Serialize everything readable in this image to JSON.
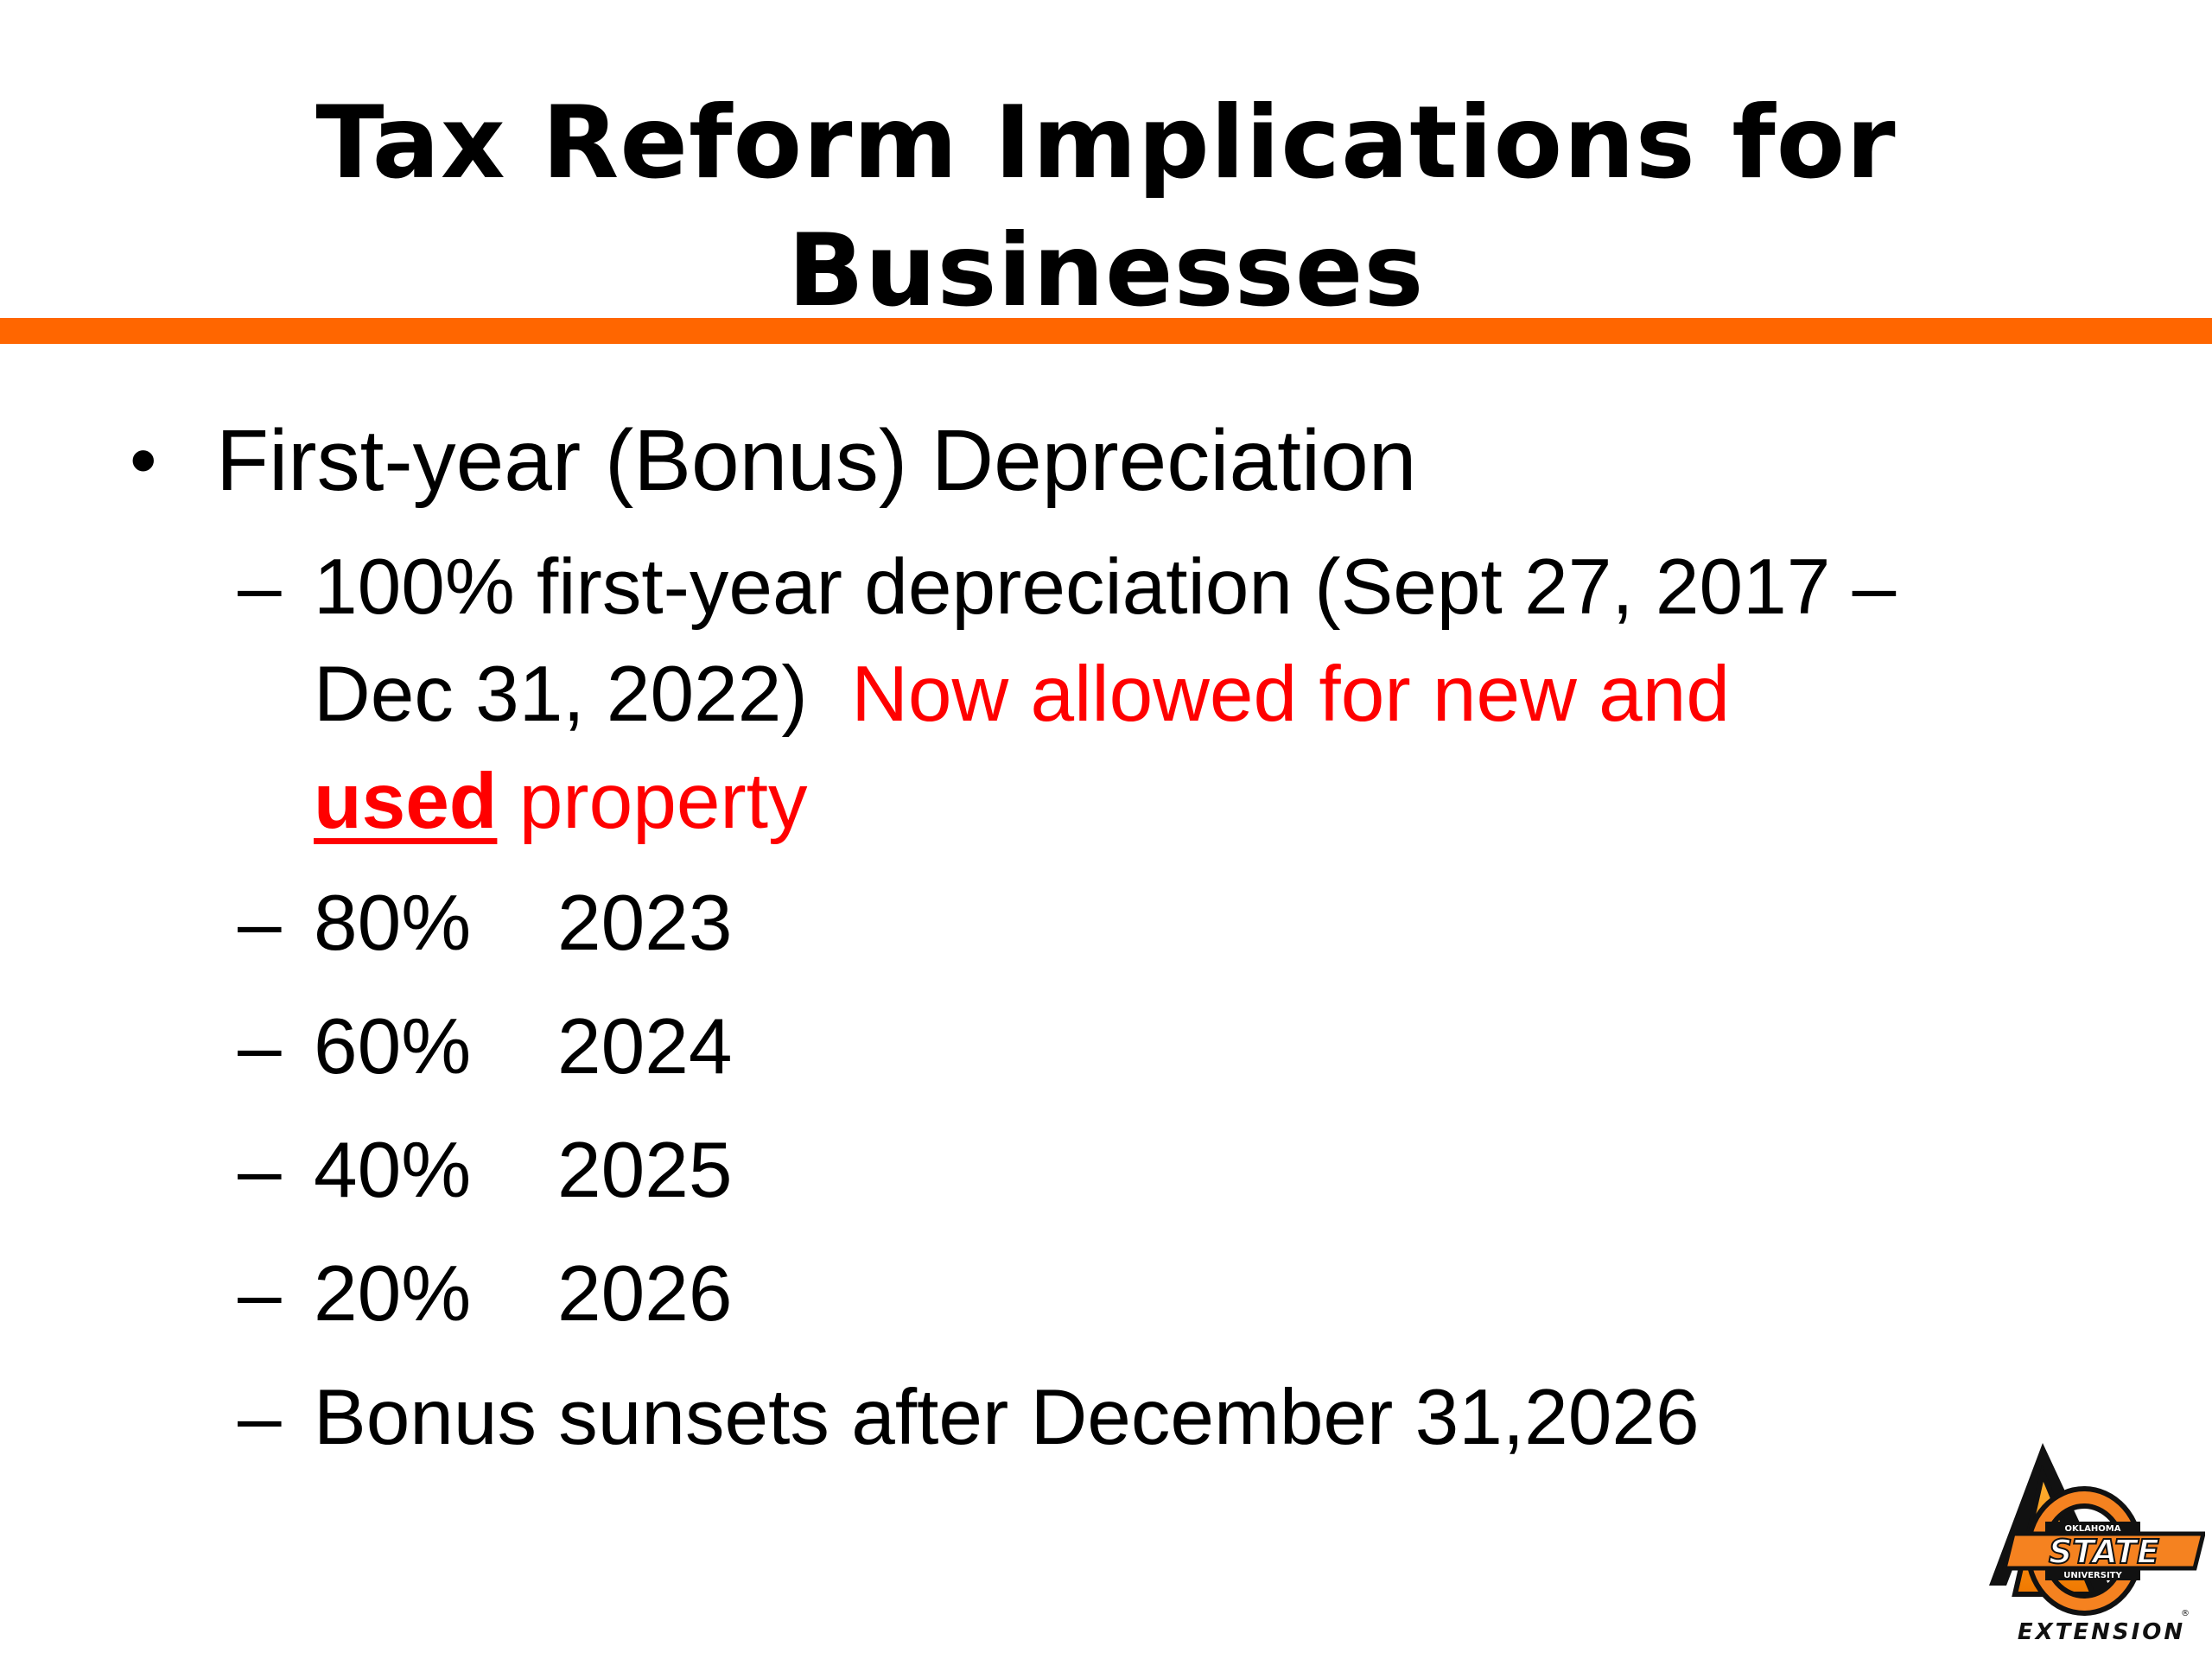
{
  "slide": {
    "title_line1": "Tax Reform Implications for",
    "title_line2": "Businesses",
    "bullet": {
      "symbol": "•",
      "text": "First-year (Bonus) Depreciation"
    },
    "sub_dash": "–",
    "sub1": {
      "line1": "100% first-year depreciation (Sept 27, 2017 –",
      "line2_black": "Dec 31, 2022)",
      "line2_red": "Now allowed for new and",
      "line3_bold": "used",
      "line3_red": " property"
    },
    "schedule": [
      {
        "percent": "80%",
        "year": "2023"
      },
      {
        "percent": "60%",
        "year": "2024"
      },
      {
        "percent": "40%",
        "year": "2025"
      },
      {
        "percent": "20%",
        "year": "2026"
      }
    ],
    "sunset": "Bonus sunsets after December 31,2026"
  },
  "logo": {
    "top_text": "OKLAHOMA",
    "main_text": "STATE",
    "sub_text": "UNIVERSITY",
    "bottom_text": "EXTENSION",
    "registered": "®"
  },
  "colors": {
    "accent": "#FF6600",
    "highlight": "#FF0000",
    "text": "#000000"
  }
}
